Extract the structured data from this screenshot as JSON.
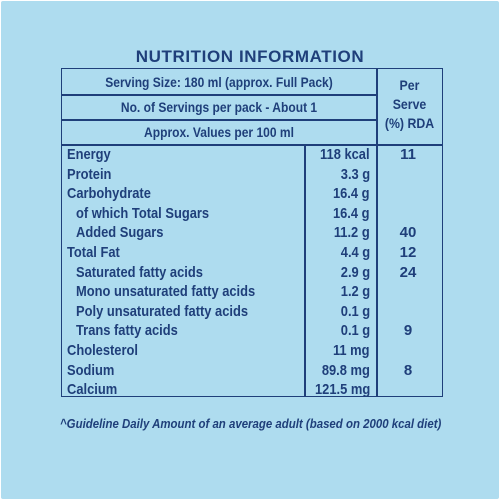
{
  "title": "NUTRITION INFORMATION",
  "header": {
    "serving_size": "Serving Size: 180 ml (approx. Full Pack)",
    "servings_per_pack": "No. of Servings per pack - About 1",
    "approx_values": "Approx. Values per 100 ml",
    "rda_line1": "Per",
    "rda_line2": "Serve",
    "rda_line3": "(%) RDA"
  },
  "rows": [
    {
      "label": "Energy",
      "value": "118 kcal",
      "rda": "11",
      "indent": 0
    },
    {
      "label": "Protein",
      "value": "3.3 g",
      "rda": "",
      "indent": 0
    },
    {
      "label": "Carbohydrate",
      "value": "16.4 g",
      "rda": "",
      "indent": 0
    },
    {
      "label": "of which Total Sugars",
      "value": "16.4 g",
      "rda": "",
      "indent": 1
    },
    {
      "label": "Added Sugars",
      "value": "11.2 g",
      "rda": "40",
      "indent": 1
    },
    {
      "label": "Total Fat",
      "value": "4.4 g",
      "rda": "12",
      "indent": 0
    },
    {
      "label": "Saturated fatty acids",
      "value": "2.9 g",
      "rda": "24",
      "indent": 1
    },
    {
      "label": "Mono unsaturated fatty acids",
      "value": "1.2 g",
      "rda": "",
      "indent": 1
    },
    {
      "label": "Poly unsaturated fatty acids",
      "value": "0.1 g",
      "rda": "",
      "indent": 1
    },
    {
      "label": "Trans fatty acids",
      "value": "0.1 g",
      "rda": "9",
      "indent": 1
    },
    {
      "label": "Cholesterol",
      "value": "11 mg",
      "rda": "",
      "indent": 0
    },
    {
      "label": "Sodium",
      "value": "89.8 mg",
      "rda": "8",
      "indent": 0
    },
    {
      "label": "Calcium",
      "value": "121.5 mg",
      "rda": "",
      "indent": 0
    }
  ],
  "footnote": "^Guideline Daily Amount of an average adult (based on 2000 kcal diet)",
  "colors": {
    "background": "#aedcef",
    "ink": "#1f3f7a"
  }
}
